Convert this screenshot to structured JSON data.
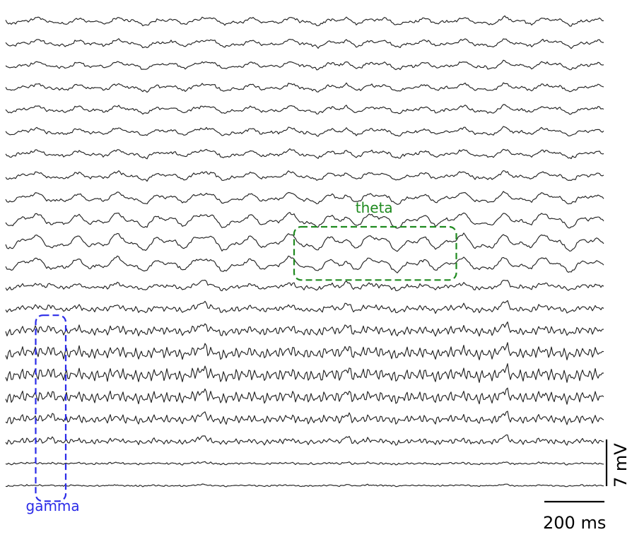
{
  "chart_data": {
    "type": "line",
    "title": "",
    "xlabel": "",
    "ylabel": "",
    "n_traces": 22,
    "trace_color": "#222222",
    "grid": false,
    "annotations": [
      {
        "label": "theta",
        "color": "#1f8a1f",
        "trace_from": 10,
        "trace_to": 11,
        "x_from_ms": 960,
        "x_to_ms": 1500
      },
      {
        "label": "gamma",
        "color": "#2b2be8",
        "trace_from": 14,
        "trace_to": 21,
        "x_from_ms": 100,
        "x_to_ms": 200
      }
    ],
    "scale_bars": {
      "time_label": "200 ms",
      "voltage_label": "7 mV",
      "time_ms": 200,
      "voltage_mv": 7
    }
  }
}
